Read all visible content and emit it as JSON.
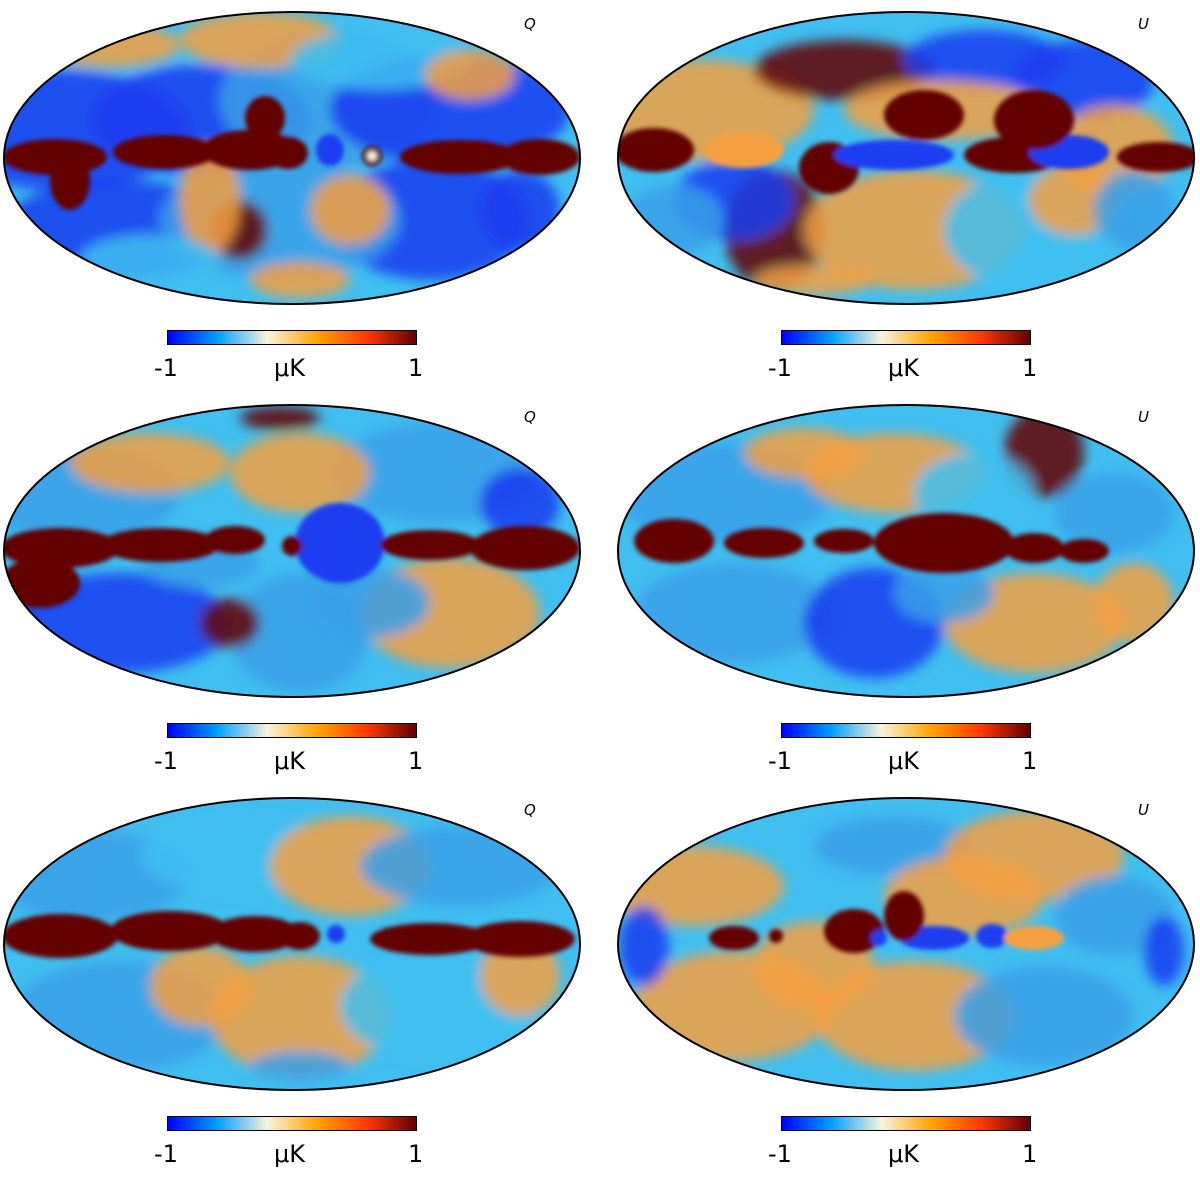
{
  "panels": [
    {
      "id": "row1-Q",
      "stokes": "Q",
      "colorbar": {
        "min": "-1",
        "max": "1",
        "unit": "μK"
      }
    },
    {
      "id": "row1-U",
      "stokes": "U",
      "colorbar": {
        "min": "-1",
        "max": "1",
        "unit": "μK"
      }
    },
    {
      "id": "row2-Q",
      "stokes": "Q",
      "colorbar": {
        "min": "-1",
        "max": "1",
        "unit": "μK"
      }
    },
    {
      "id": "row2-U",
      "stokes": "U",
      "colorbar": {
        "min": "-1",
        "max": "1",
        "unit": "μK"
      }
    },
    {
      "id": "row3-Q",
      "stokes": "Q",
      "colorbar": {
        "min": "-1",
        "max": "1",
        "unit": "μK"
      }
    },
    {
      "id": "row3-U",
      "stokes": "U",
      "colorbar": {
        "min": "-1",
        "max": "1",
        "unit": "μK"
      }
    }
  ],
  "projection": "Mollweide",
  "colormap": {
    "name": "planck",
    "stops": [
      "#0000ff",
      "#00a0ff",
      "#f7f3df",
      "#ffa500",
      "#ff3a00",
      "#640000"
    ],
    "colors": {
      "dark_red": "#640000",
      "red": "#d03a10",
      "orange": "#f5a040",
      "cream": "#f7f3df",
      "cyan": "#40bff0",
      "sky_blue": "#3aa0e8",
      "blue": "#1a3cf0"
    }
  }
}
